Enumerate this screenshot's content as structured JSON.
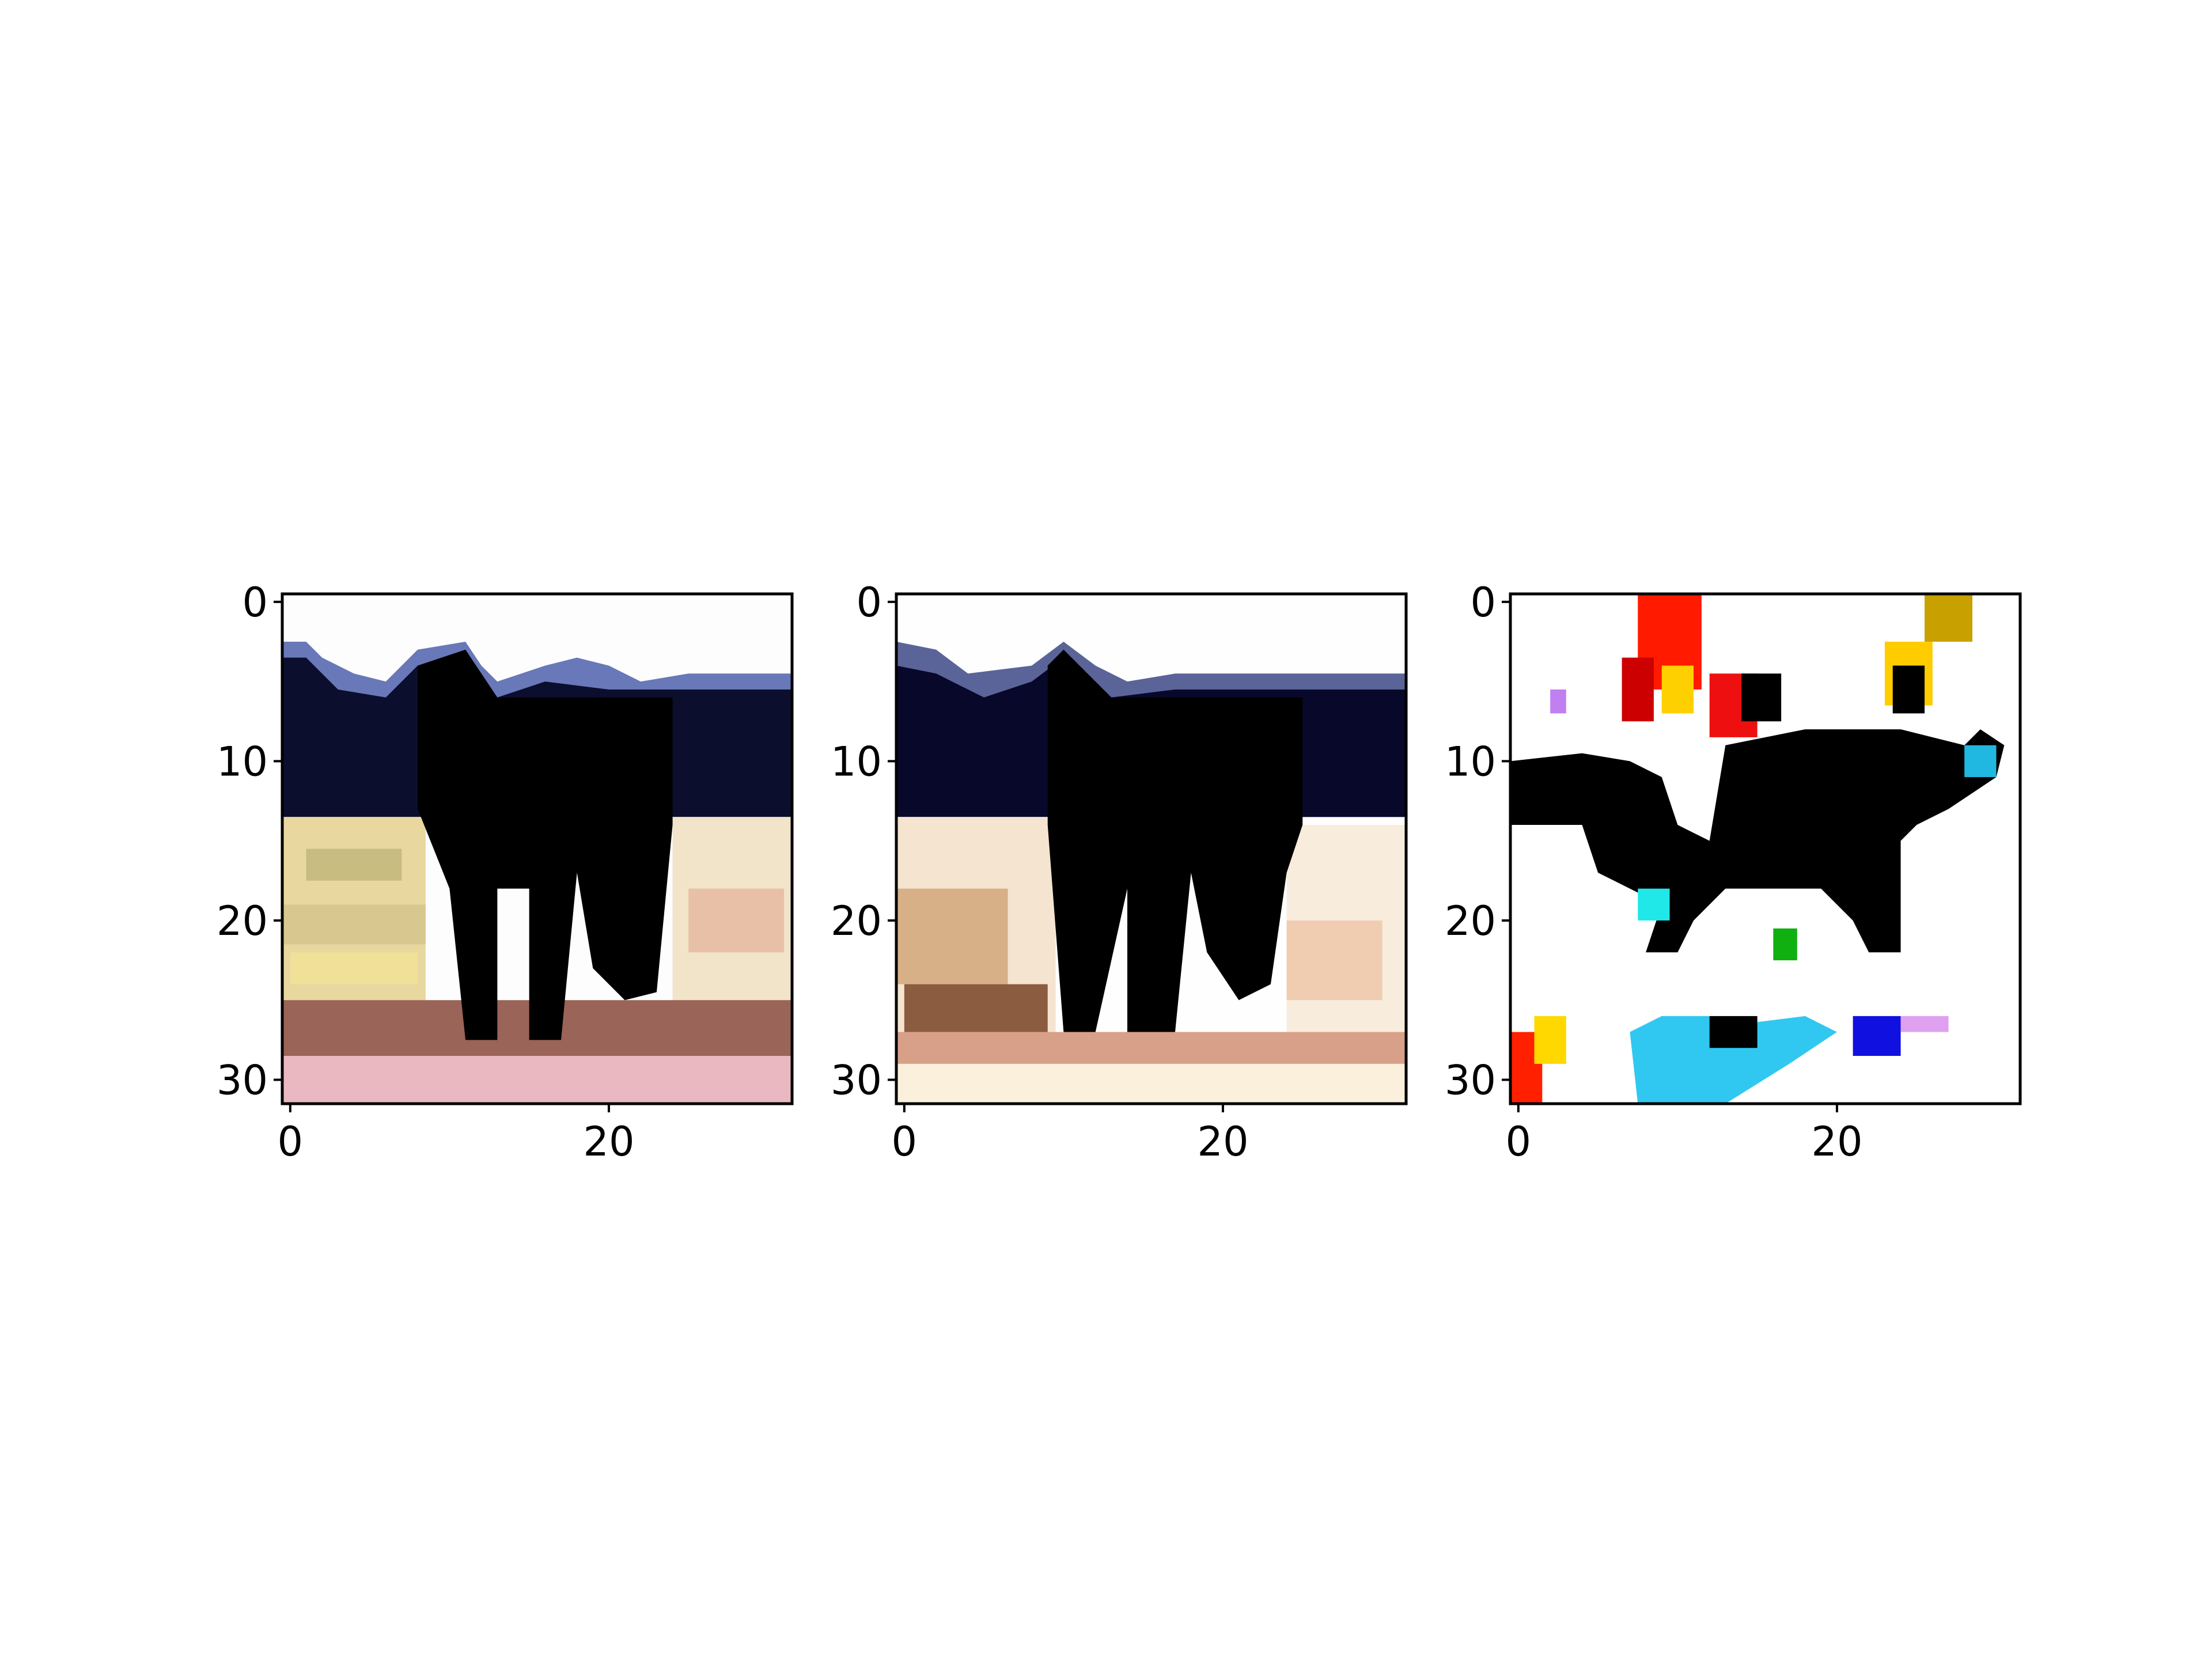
{
  "chart_data": [
    {
      "type": "image",
      "xlim": [
        -0.5,
        31.5
      ],
      "ylim": [
        31.5,
        -0.5
      ],
      "xticks": [
        0,
        20
      ],
      "yticks": [
        0,
        10,
        20,
        30
      ]
    },
    {
      "type": "image",
      "xlim": [
        -0.5,
        31.5
      ],
      "ylim": [
        31.5,
        -0.5
      ],
      "xticks": [
        0,
        20
      ],
      "yticks": [
        0,
        10,
        20,
        30
      ]
    },
    {
      "type": "image",
      "xlim": [
        -0.5,
        31.5
      ],
      "ylim": [
        31.5,
        -0.5
      ],
      "xticks": [
        0,
        20
      ],
      "yticks": [
        0,
        10,
        20,
        30
      ]
    }
  ]
}
